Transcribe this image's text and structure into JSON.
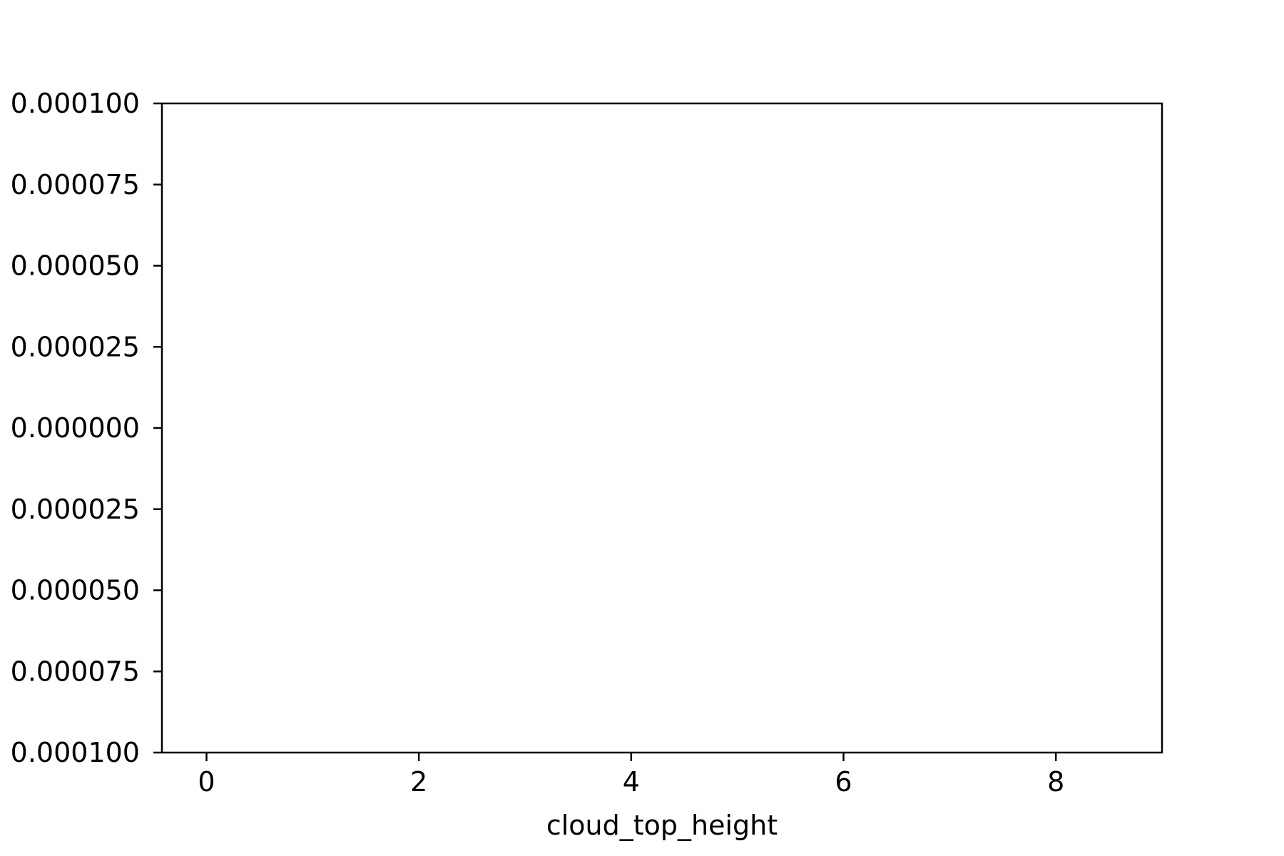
{
  "chart_data": {
    "type": "line",
    "title": "",
    "xlabel": "cloud_top_height",
    "ylabel": "",
    "xlim": [
      -0.42,
      9.0
    ],
    "ylim": [
      -0.0001,
      0.0001
    ],
    "x_ticks": [
      0,
      2,
      4,
      6,
      8
    ],
    "x_tick_labels": [
      "0",
      "2",
      "4",
      "6",
      "8"
    ],
    "y_ticks": [
      0.0001,
      7.5e-05,
      5e-05,
      2.5e-05,
      0.0,
      -2.5e-05,
      -5e-05,
      -7.5e-05,
      -0.0001
    ],
    "y_tick_labels": [
      "0.000100",
      "0.000075",
      "0.000050",
      "0.000025",
      "0.000000",
      "0.000025",
      "0.000050",
      "0.000075",
      "0.000100"
    ],
    "series": [],
    "grid": false,
    "legend": "none",
    "colors": {
      "frame": "#000000",
      "background": "#ffffff"
    }
  }
}
